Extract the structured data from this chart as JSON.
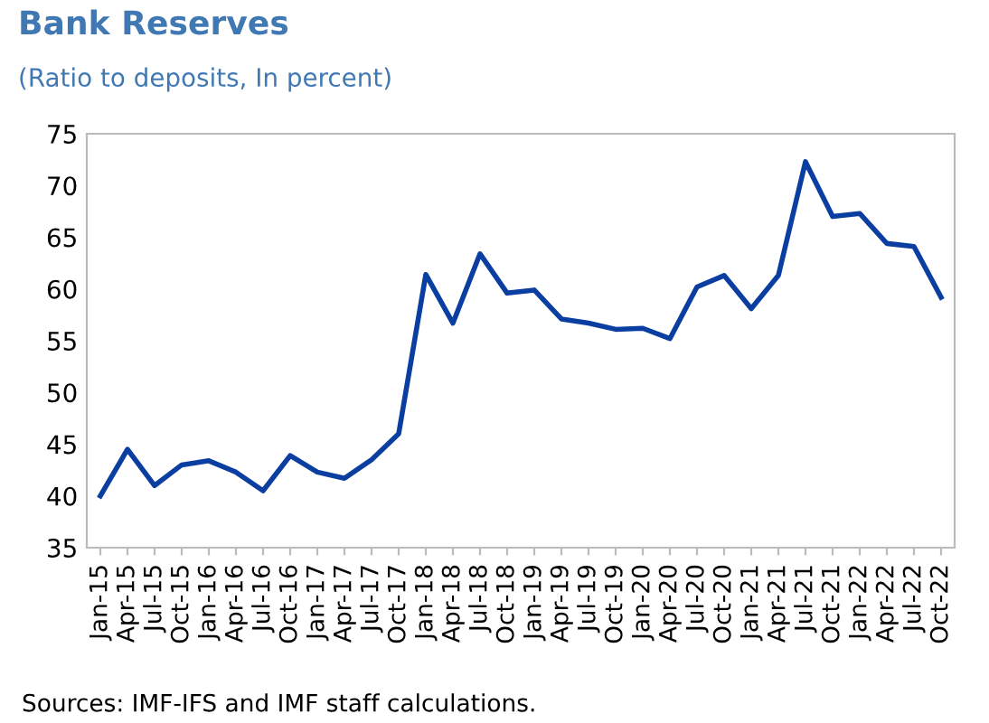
{
  "chart_data": {
    "type": "line",
    "title": "Bank Reserves",
    "subtitle": "(Ratio to deposits, In percent)",
    "categories": [
      "Jan-15",
      "Apr-15",
      "Jul-15",
      "Oct-15",
      "Jan-16",
      "Apr-16",
      "Jul-16",
      "Oct-16",
      "Jan-17",
      "Apr-17",
      "Jul-17",
      "Oct-17",
      "Jan-18",
      "Apr-18",
      "Jul-18",
      "Oct-18",
      "Jan-19",
      "Apr-19",
      "Jul-19",
      "Oct-19",
      "Jan-20",
      "Apr-20",
      "Jul-20",
      "Oct-20",
      "Jan-21",
      "Apr-21",
      "Jul-21",
      "Oct-21",
      "Jan-22",
      "Apr-22",
      "Jul-22",
      "Oct-22"
    ],
    "series": [
      {
        "color": "#0a3ea0",
        "values": [
          40,
          44.5,
          41,
          43,
          43.4,
          42.3,
          40.5,
          43.9,
          42.3,
          41.7,
          43.5,
          46,
          61.4,
          56.7,
          63.4,
          59.6,
          59.9,
          57.1,
          56.7,
          56.1,
          56.2,
          55.2,
          60.2,
          61.3,
          58.1,
          61.3,
          72.3,
          67,
          67.3,
          64.4,
          64.1,
          59.2
        ]
      }
    ],
    "ylim": [
      35,
      75
    ],
    "yticks": [
      35,
      40,
      45,
      50,
      55,
      60,
      65,
      70,
      75
    ],
    "grid": false,
    "legend": false,
    "annotations": [
      "Sources: IMF-IFS and IMF staff calculations."
    ]
  }
}
